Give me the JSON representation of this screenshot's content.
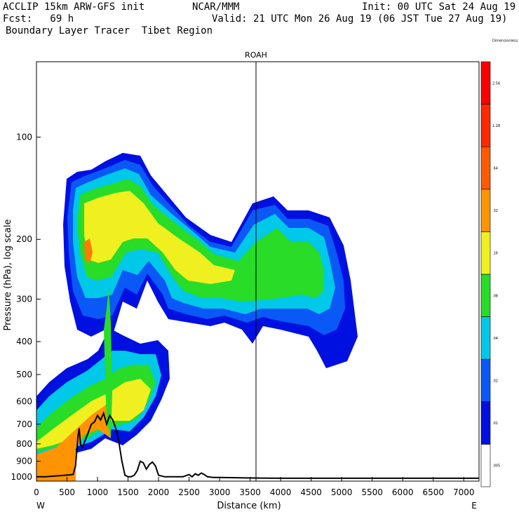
{
  "header": {
    "line1_left": "ACCLIP 15km ARW-GFS init",
    "line1_mid": "NCAR/MMM",
    "line1_right": "Init: 00 UTC Sat 24 Aug 19",
    "line2_left": "Fcst:   69 h",
    "line2_right": "Valid: 21 UTC Mon 26 Aug 19 (06 JST Tue 27 Aug 19)",
    "line3_left": "Boundary Layer Tracer  Tibet Region"
  },
  "chart_data": {
    "type": "heatmap",
    "title": "ROAH",
    "xlabel": "Distance (km)",
    "ylabel": "Pressure (hPa), log scale",
    "x_ticks": [
      "0",
      "500",
      "1000",
      "1500",
      "2000",
      "2500",
      "3000",
      "3500",
      "4000",
      "4500",
      "5000",
      "5500",
      "6000",
      "6500",
      "7000"
    ],
    "y_ticks": [
      "100",
      "200",
      "300",
      "400",
      "500",
      "600",
      "700",
      "800",
      "900",
      "1000"
    ],
    "xlim": [
      0,
      7250
    ],
    "ylim": [
      1030,
      60
    ],
    "y_scale": "log",
    "x_end_labels": {
      "left": "W",
      "right": "E"
    },
    "station_marker": {
      "label": "ROAH",
      "x": 3600
    },
    "colorbar": {
      "levels": [
        ".005",
        ".01",
        ".02",
        ".04",
        ".08",
        ".16",
        ".32",
        ".64",
        "1.28",
        "2.56",
        "Dimensionless"
      ],
      "colors": [
        "#ffffff",
        "#0010e0",
        "#0a58f5",
        "#00c8e8",
        "#28dc28",
        "#f0f020",
        "#ff9400",
        "#ff5a00",
        "#ff2a00",
        "#ff0000"
      ]
    },
    "terrain": {
      "x": [
        0,
        150,
        300,
        450,
        600,
        640,
        680,
        700,
        720,
        750,
        800,
        850,
        900,
        950,
        1000,
        1050,
        1100,
        1150,
        1200,
        1250,
        1300,
        1350,
        1400,
        1450,
        1500,
        1550,
        1600,
        1650,
        1700,
        1750,
        1800,
        1850,
        1900,
        1950,
        2000,
        2100,
        2200,
        2300,
        2400,
        2500,
        2550,
        2600,
        2650,
        2700,
        2750,
        2800,
        2900,
        3000,
        3500,
        4000,
        5000,
        6000,
        7000,
        7250
      ],
      "p": [
        1000,
        1000,
        995,
        990,
        985,
        930,
        760,
        720,
        800,
        820,
        780,
        740,
        700,
        690,
        660,
        680,
        650,
        700,
        660,
        680,
        720,
        790,
        900,
        990,
        1000,
        1000,
        990,
        960,
        900,
        910,
        950,
        920,
        905,
        930,
        990,
        1000,
        1000,
        1000,
        1000,
        985,
        1000,
        980,
        990,
        975,
        985,
        1000,
        1005,
        1005,
        1008,
        1010,
        1010,
        1010,
        1010,
        1010
      ]
    }
  }
}
